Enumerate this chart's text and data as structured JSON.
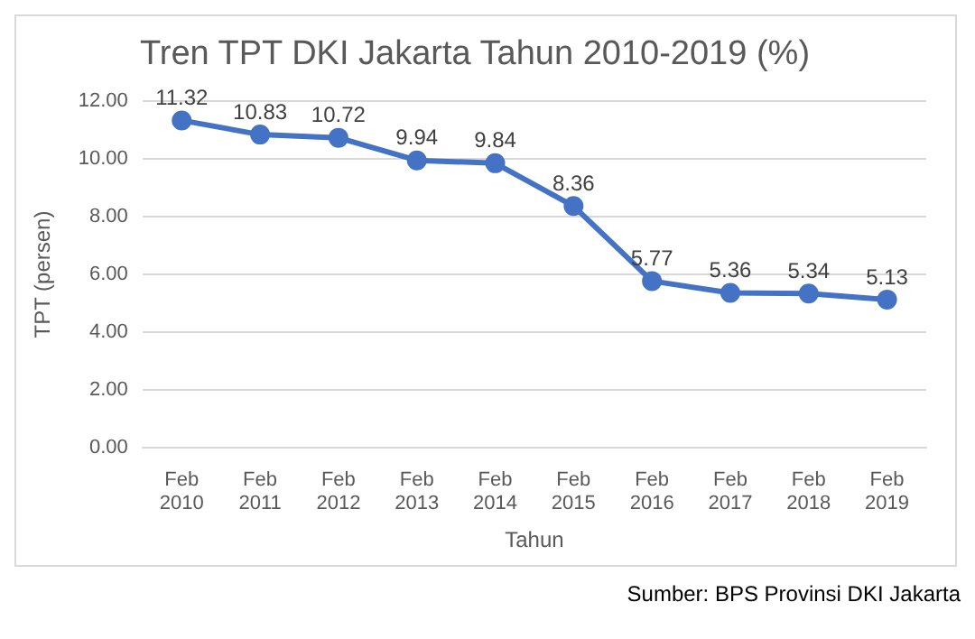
{
  "chart_data": {
    "type": "line",
    "title": "Tren TPT DKI Jakarta Tahun 2010-2019 (%)",
    "xlabel": "Tahun",
    "ylabel": "TPT (persen)",
    "categories": [
      "Feb 2010",
      "Feb 2011",
      "Feb 2012",
      "Feb 2013",
      "Feb 2014",
      "Feb 2015",
      "Feb 2016",
      "Feb 2017",
      "Feb 2018",
      "Feb 2019"
    ],
    "series": [
      {
        "color": "#4472c4",
        "values": [
          11.32,
          10.83,
          10.72,
          9.94,
          9.84,
          8.36,
          5.77,
          5.36,
          5.34,
          5.13
        ]
      }
    ],
    "ylim": [
      0,
      12
    ],
    "yticks": [
      {
        "value": 0,
        "label": "0.00"
      },
      {
        "value": 2,
        "label": "2.00"
      },
      {
        "value": 4,
        "label": "4.00"
      },
      {
        "value": 6,
        "label": "6.00"
      },
      {
        "value": 8,
        "label": "8.00"
      },
      {
        "value": 10,
        "label": "10.00"
      },
      {
        "value": 12,
        "label": "12.00"
      }
    ],
    "grid": "y",
    "legend": false,
    "marker": "circle",
    "line_style": "solid",
    "data_labels": true,
    "annotations": [
      "Sumber: BPS Provinsi DKI Jakarta"
    ]
  }
}
